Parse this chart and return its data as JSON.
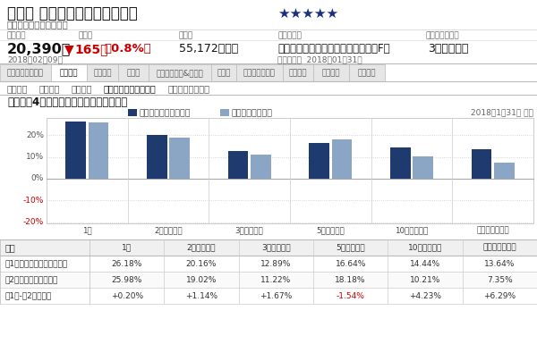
{
  "title": "セゾン 資産形成の達人ファンド",
  "stars": "★★★★★",
  "company_label": "投信会社名：セゾン投信",
  "header_labels": [
    "基準価額",
    "前日比",
    "純資産",
    "カテゴリー",
    "リスクメジャー"
  ],
  "nav": "20,390円",
  "nav_change_arrow": "▼",
  "nav_change_val": "165円",
  "nav_change_pct": "（0.8%）",
  "nav_date": "2018年02月09日",
  "aum": "55,172百万円",
  "category": "国際株式・グローバル・含む日本（F）",
  "risk": "3（平均的）",
  "eval_label": "評価基準日",
  "eval_date": "2018年01月31日",
  "tabs": [
    "スナップショット",
    "リターン",
    "チャート",
    "分配金",
    "レーティング&リスク",
    "コスト",
    "ポートフォリオ",
    "ニュース",
    "販売会社",
    "目論見書"
  ],
  "active_tab": "リターン",
  "subtabs": [
    "リターン",
    "累積収益",
    "期間収益",
    "インベスターリターン",
    "月次資金流出入額"
  ],
  "active_subtab": "インベスターリターン",
  "section_title": "リターン4：インベスターリターングラフ",
  "legend_investor": "インベスターリターン",
  "legend_total": "トータルリターン",
  "date_label": "2018年1月31日 時点",
  "bar_categories": [
    "1年",
    "2年（年率）",
    "3年（年率）",
    "5年（年率）",
    "10年（年率）",
    "設定来（年率）"
  ],
  "investor_returns": [
    26.18,
    20.16,
    12.89,
    16.64,
    14.44,
    13.64
  ],
  "total_returns": [
    25.98,
    19.02,
    11.22,
    18.18,
    10.21,
    7.35
  ],
  "investor_color": "#1e3a6e",
  "total_color": "#8ba5c5",
  "table_period": "期間",
  "table_row1": "（1）インベスターリターン",
  "table_row2": "（2）トータルリターン",
  "table_row3": "（1）-（2）〈差〉",
  "table_vals_investor": [
    "26.18%",
    "20.16%",
    "12.89%",
    "16.64%",
    "14.44%",
    "13.64%"
  ],
  "table_vals_total": [
    "25.98%",
    "19.02%",
    "11.22%",
    "18.18%",
    "10.21%",
    "7.35%"
  ],
  "table_vals_diff": [
    "+0.20%",
    "+1.14%",
    "+1.67%",
    "-1.54%",
    "+4.23%",
    "+6.29%"
  ],
  "diff_neg_idx": [
    3
  ],
  "bg_color": "#ffffff",
  "neg_color": "#cc0000",
  "pos_text_color": "#444444",
  "light_gray": "#e8e8e8",
  "mid_gray": "#cccccc",
  "dark_text": "#222222",
  "sub_text": "#666666"
}
